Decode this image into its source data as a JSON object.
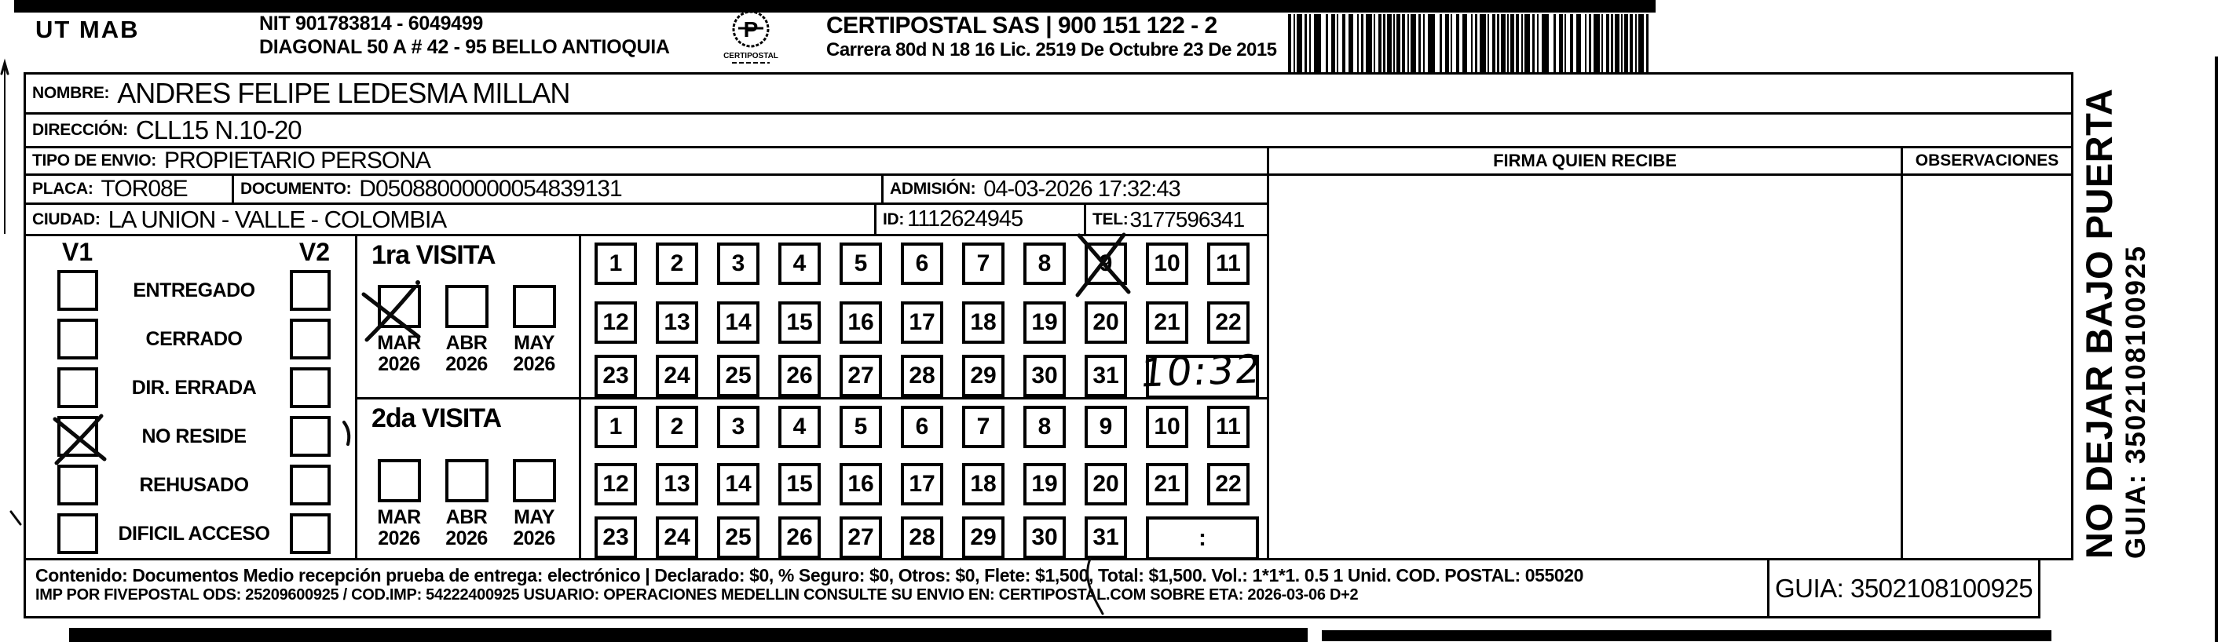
{
  "header": {
    "sender": "UT MAB",
    "nit": "NIT 901783814 - 6049499",
    "sender_address": "DIAGONAL 50 A # 42 - 95  BELLO  ANTIOQUIA",
    "logo_caption": "CERTIPOSTAL",
    "company": "CERTIPOSTAL SAS | 900 151 122 - 2",
    "company_address": "Carrera 80d N 18 16  Lic. 2519 De Octubre 23 De 2015"
  },
  "recipient": {
    "nombre_label": "NOMBRE:",
    "nombre": "ANDRES FELIPE LEDESMA MILLAN",
    "direccion_label": "DIRECCIÓN:",
    "direccion": "CLL15 N.10-20",
    "tipo_label": "TIPO DE ENVIO:",
    "tipo": "PROPIETARIO PERSONA",
    "placa_label": "PLACA:",
    "placa": "TOR08E",
    "documento_label": "DOCUMENTO:",
    "documento": "D05088000000054839131",
    "admision_label": "ADMISIÓN:",
    "admision": "04-03-2026 17:32:43",
    "ciudad_label": "CIUDAD:",
    "ciudad": "LA UNION - VALLE - COLOMBIA",
    "id_label": "ID:",
    "id": "1112624945",
    "tel_label": "TEL:",
    "tel": "3177596341"
  },
  "columns": {
    "firma": "FIRMA QUIEN RECIBE",
    "observaciones": "OBSERVACIONES"
  },
  "delivery": {
    "v1": "V1",
    "v2": "V2",
    "statuses": [
      {
        "label": "ENTREGADO",
        "v1_checked": false,
        "v2_checked": false
      },
      {
        "label": "CERRADO",
        "v1_checked": false,
        "v2_checked": false
      },
      {
        "label": "DIR. ERRADA",
        "v1_checked": false,
        "v2_checked": false
      },
      {
        "label": "NO RESIDE",
        "v1_checked": true,
        "v2_checked": false
      },
      {
        "label": "REHUSADO",
        "v1_checked": false,
        "v2_checked": false
      },
      {
        "label": "DIFICIL ACCESO",
        "v1_checked": false,
        "v2_checked": false
      }
    ],
    "visits": [
      {
        "title": "1ra VISITA",
        "months": [
          {
            "label": "MAR",
            "year": "2026",
            "checked": true
          },
          {
            "label": "ABR",
            "year": "2026",
            "checked": false
          },
          {
            "label": "MAY",
            "year": "2026",
            "checked": false
          }
        ],
        "day_rows": [
          [
            1,
            2,
            3,
            4,
            5,
            6,
            7,
            8,
            9,
            10,
            11
          ],
          [
            12,
            13,
            14,
            15,
            16,
            17,
            18,
            19,
            20,
            21,
            22
          ],
          [
            23,
            24,
            25,
            26,
            27,
            28,
            29,
            30,
            31
          ]
        ],
        "crossed_day": 9,
        "time": "10:32",
        "time_handwritten": true
      },
      {
        "title": "2da VISITA",
        "months": [
          {
            "label": "MAR",
            "year": "2026",
            "checked": false
          },
          {
            "label": "ABR",
            "year": "2026",
            "checked": false
          },
          {
            "label": "MAY",
            "year": "2026",
            "checked": false
          }
        ],
        "day_rows": [
          [
            1,
            2,
            3,
            4,
            5,
            6,
            7,
            8,
            9,
            10,
            11
          ],
          [
            12,
            13,
            14,
            15,
            16,
            17,
            18,
            19,
            20,
            21,
            22
          ],
          [
            23,
            24,
            25,
            26,
            27,
            28,
            29,
            30,
            31
          ]
        ],
        "crossed_day": null,
        "time": ":",
        "time_handwritten": false
      }
    ]
  },
  "side": {
    "warning": "NO DEJAR BAJO PUERTA",
    "guia": "GUIA: 3502108100925"
  },
  "footer": {
    "line1": "Contenido: Documentos Medio recepción prueba de entrega: electrónico | Declarado: $0, % Seguro: $0, Otros: $0, Flete: $1,500, Total: $1,500. Vol.: 1*1*1. 0.5  1 Unid. COD. POSTAL: 055020",
    "line2": "IMP POR FIVEPOSTAL ODS: 25209600925 / COD.IMP: 54222400925 USUARIO: OPERACIONES MEDELLIN CONSULTE SU ENVIO EN: CERTIPOSTAL.COM SOBRE ETA: 2026-03-06 D+2",
    "guia": "GUIA: 3502108100925"
  }
}
